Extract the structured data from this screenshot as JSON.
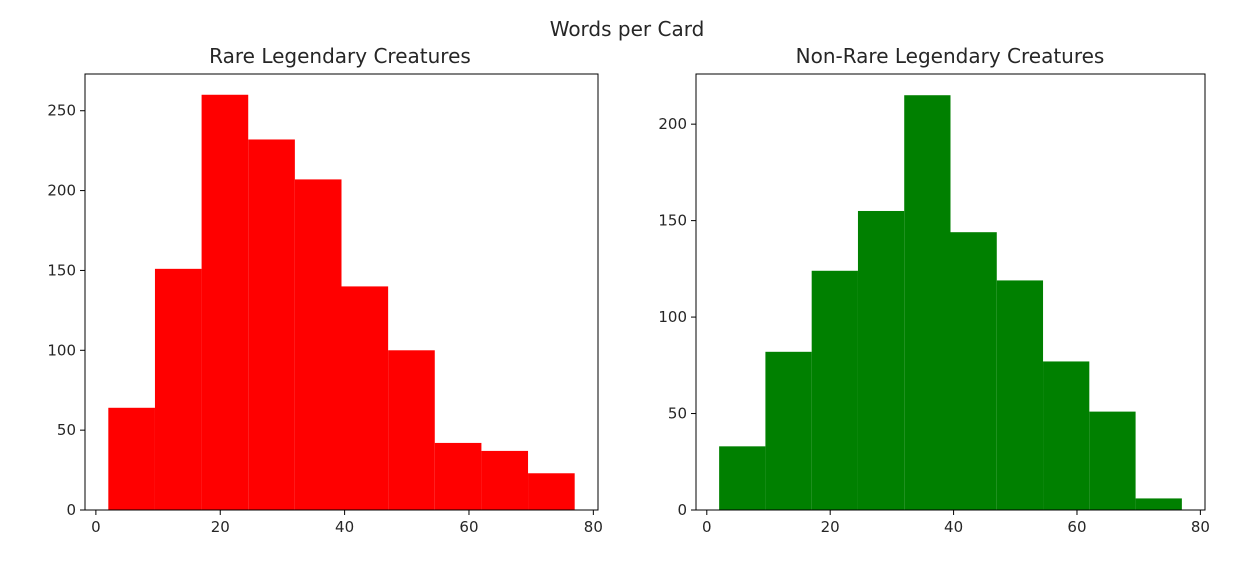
{
  "figure": {
    "suptitle": "Words per Card"
  },
  "chart_data": [
    {
      "type": "bar",
      "title": "Rare Legendary Creatures",
      "xlabel": "",
      "ylabel": "",
      "color": "#ff0000",
      "bin_edges": [
        2,
        9.5,
        17,
        24.5,
        32,
        39.5,
        47,
        54.5,
        62,
        69.5,
        77
      ],
      "values": [
        64,
        151,
        260,
        232,
        207,
        140,
        100,
        42,
        37,
        23
      ],
      "xlim": [
        -1.75,
        80.75
      ],
      "ylim": [
        0,
        273
      ],
      "xticks": [
        0,
        20,
        40,
        60,
        80
      ],
      "yticks": [
        0,
        50,
        100,
        150,
        200,
        250
      ],
      "grid": false
    },
    {
      "type": "bar",
      "title": "Non-Rare Legendary Creatures",
      "xlabel": "",
      "ylabel": "",
      "color": "#008000",
      "bin_edges": [
        2,
        9.5,
        17,
        24.5,
        32,
        39.5,
        47,
        54.5,
        62,
        69.5,
        77
      ],
      "values": [
        33,
        82,
        124,
        155,
        215,
        144,
        119,
        77,
        51,
        6
      ],
      "xlim": [
        -1.75,
        80.75
      ],
      "ylim": [
        0,
        226
      ],
      "xticks": [
        0,
        20,
        40,
        60,
        80
      ],
      "yticks": [
        0,
        50,
        100,
        150,
        200
      ],
      "grid": false
    }
  ]
}
